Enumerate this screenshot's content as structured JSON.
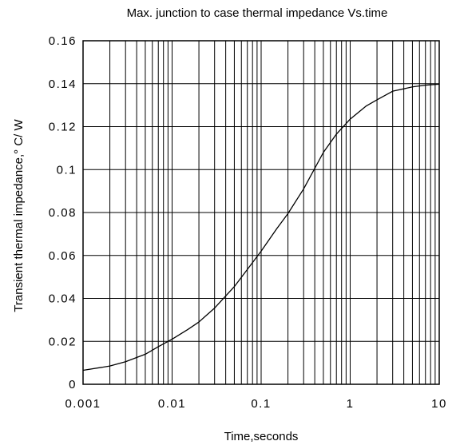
{
  "chart_data": {
    "type": "line",
    "title": "Max. junction to case thermal impedance  Vs.time",
    "xlabel": "Time,seconds",
    "ylabel": "Transient thermal impedance,° C/ W",
    "x_scale": "log",
    "xlim": [
      0.001,
      10
    ],
    "ylim": [
      0,
      0.16
    ],
    "x_ticks": [
      0.001,
      0.01,
      0.1,
      1,
      10
    ],
    "x_tick_labels": [
      "0.001",
      "0.01",
      "0.1",
      "1",
      "10"
    ],
    "y_ticks": [
      0,
      0.02,
      0.04,
      0.06,
      0.08,
      0.1,
      0.12,
      0.14,
      0.16
    ],
    "y_tick_labels": [
      "0",
      "0.02",
      "0.04",
      "0.06",
      "0.08",
      "0.1",
      "0.12",
      "0.14",
      "0.16"
    ],
    "grid": true,
    "series": [
      {
        "x": [
          0.001,
          0.002,
          0.003,
          0.005,
          0.007,
          0.01,
          0.015,
          0.02,
          0.03,
          0.05,
          0.07,
          0.1,
          0.15,
          0.2,
          0.3,
          0.5,
          0.7,
          1,
          1.5,
          2,
          3,
          5,
          7,
          10
        ],
        "values": [
          0.0065,
          0.0085,
          0.0105,
          0.014,
          0.0175,
          0.021,
          0.0255,
          0.029,
          0.0355,
          0.0455,
          0.0535,
          0.062,
          0.0725,
          0.0795,
          0.091,
          0.108,
          0.1165,
          0.1235,
          0.1295,
          0.1325,
          0.1365,
          0.1385,
          0.1393,
          0.1398
        ]
      }
    ]
  }
}
